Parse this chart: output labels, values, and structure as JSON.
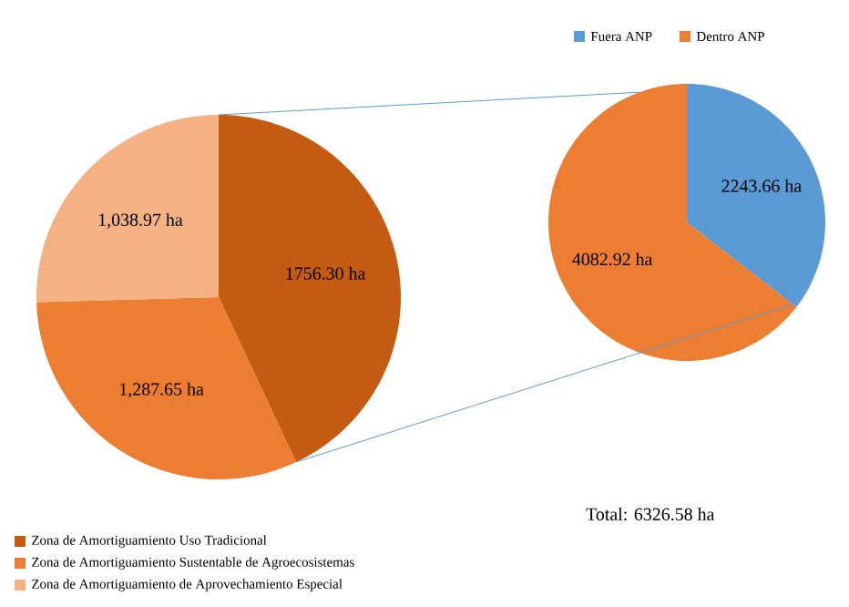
{
  "chart_data": [
    {
      "type": "pie",
      "categories": [
        "Zona de Amortiguamiento Uso Tradicional",
        "Zona de Amortiguamiento Sustentable de Agroecosistemas",
        "Zona de Amortiguamiento de Aprovechamiento Especial"
      ],
      "values": [
        1756.3,
        1287.65,
        1038.97
      ],
      "colors": [
        "#c55a11",
        "#ed7d31",
        "#f4b183"
      ],
      "value_labels": [
        "1756.30  ha",
        "1,287.65  ha",
        "1,038.97  ha"
      ],
      "legend": "bottom left"
    },
    {
      "type": "pie",
      "categories": [
        "Fuera ANP",
        "Dentro ANP"
      ],
      "values": [
        2243.66,
        4082.92
      ],
      "colors": [
        "#5b9bd5",
        "#ed7d31"
      ],
      "value_labels": [
        "2243.66 ha",
        "4082.92 ha"
      ],
      "legend": "top",
      "annotations": [
        "Total: 6326.58 ha"
      ]
    }
  ]
}
